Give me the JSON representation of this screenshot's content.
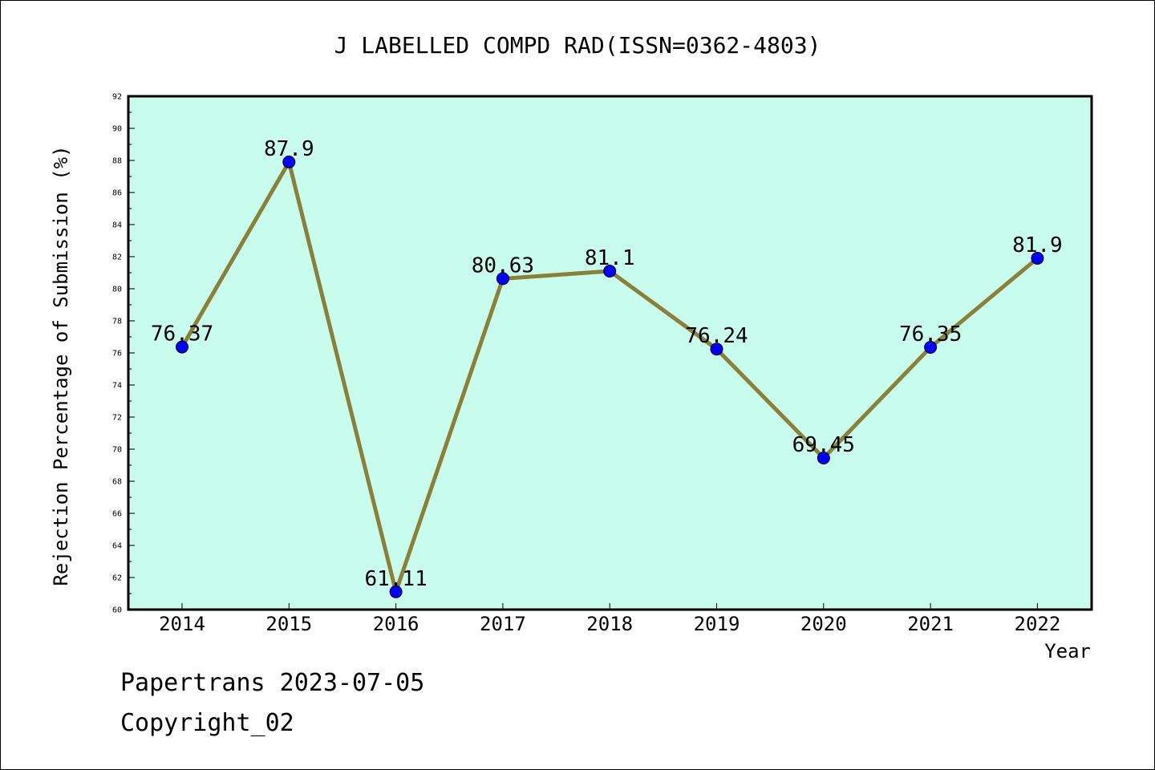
{
  "chart_data": {
    "type": "line",
    "title": "J LABELLED COMPD RAD(ISSN=0362-4803)",
    "xlabel": "Year",
    "ylabel": "Rejection Percentage of Submission (%)",
    "categories": [
      "2014",
      "2015",
      "2016",
      "2017",
      "2018",
      "2019",
      "2020",
      "2021",
      "2022"
    ],
    "series": [
      {
        "values": [
          76.37,
          87.9,
          61.11,
          80.63,
          81.1,
          76.24,
          69.45,
          76.35,
          81.9
        ]
      }
    ],
    "data_labels": [
      "76.37",
      "87.9",
      "61.11",
      "80.63",
      "81.1",
      "76.24",
      "69.45",
      "76.35",
      "81.9"
    ],
    "ylim": [
      60,
      92
    ],
    "yticks": [
      60,
      62,
      64,
      66,
      68,
      70,
      72,
      74,
      76,
      78,
      80,
      82,
      84,
      86,
      88,
      90,
      92
    ],
    "grid": false,
    "colors": {
      "plot_background": "#c8fced",
      "line": "#8b8038",
      "marker": "#0000ff"
    }
  },
  "footer": {
    "line1": "Papertrans 2023-07-05",
    "line2": "Copyright_02"
  }
}
